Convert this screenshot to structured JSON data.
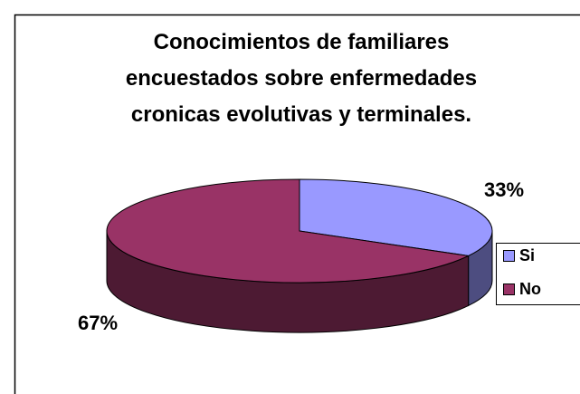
{
  "chart_data": {
    "type": "pie3d",
    "title": "Conocimientos de familiares encuestados sobre enfermedades cronicas evolutivas y terminales.",
    "categories": [
      "Si",
      "No"
    ],
    "values": [
      33,
      67
    ],
    "value_labels": [
      "33%",
      "67%"
    ],
    "colors": [
      "#9999ff",
      "#993366"
    ],
    "legend": "right"
  }
}
